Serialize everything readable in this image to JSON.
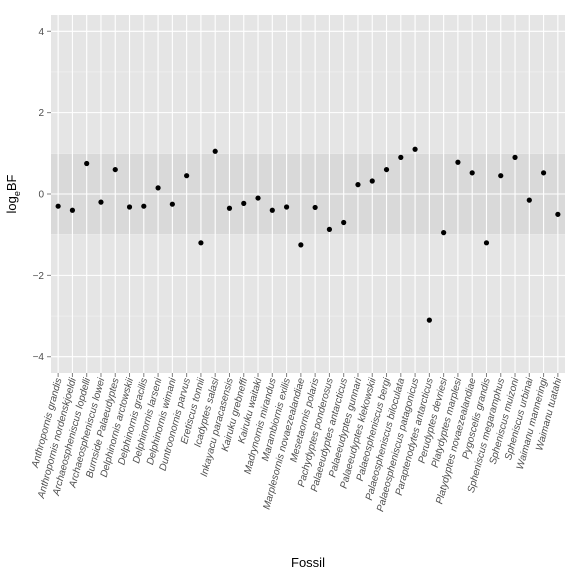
{
  "chart_data": {
    "type": "scatter",
    "xlabel": "Fossil",
    "ylabel_base": "log",
    "ylabel_sub": "e",
    "ylabel_rest": "BF",
    "ylim": [
      -4.4,
      4.4
    ],
    "yticks": [
      -4,
      -2,
      0,
      2,
      4
    ],
    "ytick_labels": [
      "−4",
      "−2",
      "0",
      "2",
      "4"
    ],
    "grid": true,
    "legend": "none",
    "band": [
      -1,
      1
    ],
    "colors": {
      "panel": "#e5e5e5",
      "band": "#d9d9d9",
      "grid_major": "#ffffff",
      "grid_minor": "#f2f2f2",
      "point": "#000000",
      "text": "#4d4d4d",
      "title": "#000000"
    },
    "categories": [
      "Anthropornis grandis",
      "Anthropornis nordenskjoeldi",
      "Archaeospheniscus lopdelli",
      "Archaeospheniscus lowei",
      "Burnside Palaeudyptes",
      "Delphinornis arctowskii",
      "Delphinornis gracilis",
      "Delphinornis larseni",
      "Delphinornis wimani",
      "Duntroonornis parvus",
      "Eretiscus tonnii",
      "Icadyptes salasi",
      "Inkayacu paracasensis",
      "Kairuku grebneffi",
      "Kairuku waitaki",
      "Madrynornis mirandus",
      "Marambiornis exilis",
      "Marplesornis novaezealandiae",
      "Mesetaornis polaris",
      "Pachydyptes ponderosus",
      "Palaeeudyptes antarcticus",
      "Palaeeudyptes gunnari",
      "Palaeeudyptes klekowskii",
      "Palaeospheniscus bergi",
      "Palaeospheniscus biloculata",
      "Palaeospheniscus patagonicus",
      "Paraptenodytes antarcticus",
      "Perudyptes devriesi",
      "Platydyptes marplesi",
      "Platydyptes novaezealandiae",
      "Pygoscelis grandis",
      "Spheniscus megaramphus",
      "Spheniscus muizoni",
      "Spheniscus urbinai",
      "Waimanu manneringi",
      "Waimanu tuatahi"
    ],
    "values": [
      -0.3,
      -0.4,
      0.75,
      -0.2,
      0.6,
      -0.32,
      -0.3,
      0.15,
      -0.25,
      0.45,
      -1.2,
      1.05,
      -0.35,
      -0.23,
      -0.1,
      -0.4,
      -0.32,
      -1.25,
      -0.33,
      -0.87,
      -0.7,
      0.23,
      0.32,
      0.6,
      0.9,
      1.1,
      -3.1,
      -0.95,
      0.78,
      0.52,
      -1.2,
      0.45,
      0.9,
      -0.15,
      0.52,
      -0.5
    ]
  }
}
